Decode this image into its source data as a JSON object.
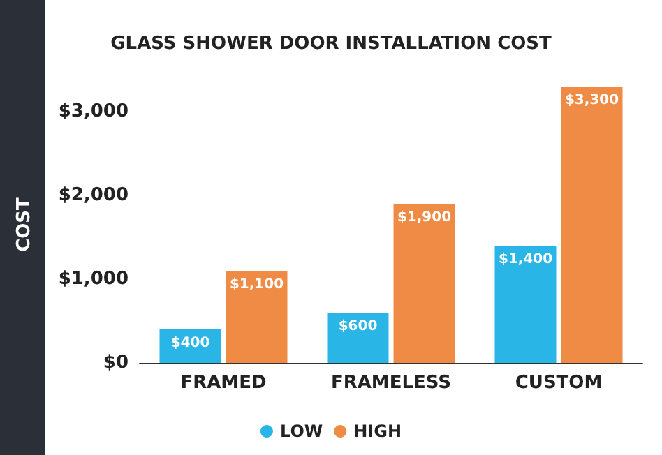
{
  "chart_data": {
    "type": "bar",
    "title": "GLASS SHOWER DOOR INSTALLATION COST",
    "ylabel": "COST",
    "categories": [
      "FRAMED",
      "FRAMELESS",
      "CUSTOM"
    ],
    "series": [
      {
        "name": "LOW",
        "color": "#29b6e6",
        "values": [
          400,
          600,
          1400
        ],
        "value_labels": [
          "$400",
          "$600",
          "$1,400"
        ]
      },
      {
        "name": "HIGH",
        "color": "#f08b45",
        "values": [
          1100,
          1900,
          3300
        ],
        "value_labels": [
          "$1,100",
          "$1,900",
          "$3,300"
        ]
      }
    ],
    "ylim": [
      0,
      3300
    ],
    "yticks": [
      {
        "value": 0,
        "label": "$0"
      },
      {
        "value": 1000,
        "label": "$1,000"
      },
      {
        "value": 2000,
        "label": "$2,000"
      },
      {
        "value": 3000,
        "label": "$3,000"
      }
    ],
    "grid": false,
    "legend": "bottom"
  }
}
